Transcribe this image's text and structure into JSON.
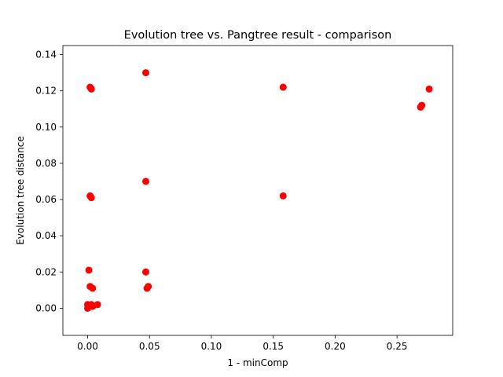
{
  "chart_data": {
    "type": "scatter",
    "title": "Evolution tree vs. Pangtree result - comparison",
    "xlabel": "1 - minComp",
    "ylabel": "Evolution tree distance",
    "xlim": [
      -0.02,
      0.295
    ],
    "ylim": [
      -0.015,
      0.145
    ],
    "xticks": [
      0.0,
      0.05,
      0.1,
      0.15,
      0.2,
      0.25
    ],
    "xtick_labels": [
      "0.00",
      "0.05",
      "0.10",
      "0.15",
      "0.20",
      "0.25"
    ],
    "yticks": [
      0.0,
      0.02,
      0.04,
      0.06,
      0.08,
      0.1,
      0.12,
      0.14
    ],
    "ytick_labels": [
      "0.00",
      "0.02",
      "0.04",
      "0.06",
      "0.08",
      "0.10",
      "0.12",
      "0.14"
    ],
    "grid": false,
    "marker_color": "#ff0000",
    "series": [
      {
        "points": [
          [
            0.002,
            0.122
          ],
          [
            0.003,
            0.121
          ],
          [
            0.047,
            0.13
          ],
          [
            0.158,
            0.122
          ],
          [
            0.269,
            0.111
          ],
          [
            0.27,
            0.112
          ],
          [
            0.276,
            0.121
          ],
          [
            0.047,
            0.07
          ],
          [
            0.002,
            0.062
          ],
          [
            0.003,
            0.061
          ],
          [
            0.158,
            0.062
          ],
          [
            0.001,
            0.021
          ],
          [
            0.047,
            0.02
          ],
          [
            0.002,
            0.012
          ],
          [
            0.004,
            0.011
          ],
          [
            0.048,
            0.011
          ],
          [
            0.049,
            0.012
          ],
          [
            0.0,
            0.0
          ],
          [
            0.0,
            0.002
          ],
          [
            0.002,
            0.001
          ],
          [
            0.003,
            0.002
          ],
          [
            0.004,
            0.001
          ],
          [
            0.008,
            0.002
          ]
        ]
      }
    ]
  }
}
